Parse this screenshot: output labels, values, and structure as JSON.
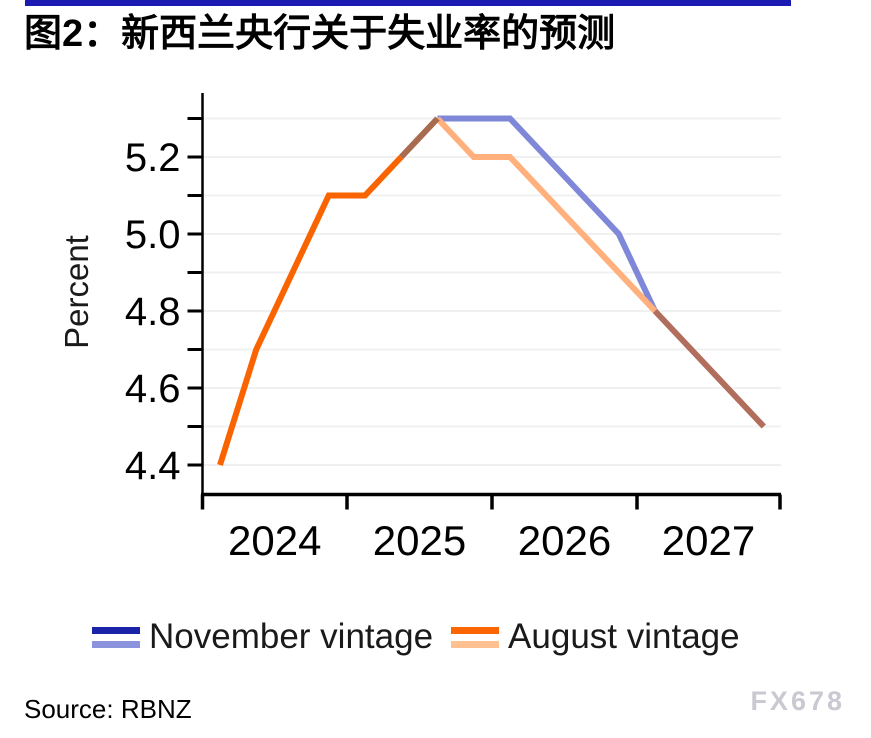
{
  "header": {
    "title": "图2：新西兰央行关于失业率的预测",
    "rule_color": "#1B1BB4"
  },
  "chart_data": {
    "type": "line",
    "title": "图2：新西兰央行关于失业率的预测",
    "xlabel": "",
    "ylabel": "Percent",
    "x_quarters": [
      "2024Q1",
      "2024Q2",
      "2024Q3",
      "2024Q4",
      "2025Q1",
      "2025Q2",
      "2025Q3",
      "2025Q4",
      "2026Q1",
      "2026Q2",
      "2026Q3",
      "2026Q4",
      "2027Q1",
      "2027Q2",
      "2027Q3",
      "2027Q4"
    ],
    "x_year_tick_labels": [
      "2024",
      "2025",
      "2026",
      "2027"
    ],
    "y_axis": {
      "min": 4.4,
      "max": 5.3,
      "grid_step": 0.1,
      "labeled_ticks": [
        "4.4",
        "4.6",
        "4.8",
        "5.0",
        "5.2"
      ],
      "labeled_tick_values": [
        4.4,
        4.6,
        4.8,
        5.0,
        5.2
      ],
      "grid": true
    },
    "legend_position": "bottom",
    "series": [
      {
        "name": "November vintage",
        "values": [
          4.4,
          4.7,
          4.9,
          5.1,
          5.1,
          5.2,
          5.3,
          5.3,
          5.3,
          5.2,
          5.1,
          5.0,
          4.8,
          4.7,
          4.6,
          4.5
        ],
        "history_end_index": 6,
        "color_history": "#1B23A8",
        "color_forecast": "#7F88D8"
      },
      {
        "name": "August vintage",
        "values": [
          4.4,
          4.7,
          4.9,
          5.1,
          5.1,
          5.2,
          5.3,
          5.2,
          5.2,
          5.1,
          5.0,
          4.9,
          4.8,
          4.7,
          4.6,
          4.5
        ],
        "history_end_index": 5,
        "color_history": "#FA6400",
        "color_forecast": "#FFB07C"
      }
    ],
    "render_segments": [
      {
        "series": 0,
        "from": 6,
        "to": 12,
        "color": "#7F88D8",
        "note": "November forecast (light blue)"
      },
      {
        "series": 1,
        "from": 6,
        "to": 12,
        "color": "#FFB07C",
        "note": "August forecast (light orange)"
      },
      {
        "series": 0,
        "from": 5,
        "to": 6,
        "color": "#A96B50",
        "note": "overlap of November history and August forecast"
      },
      {
        "series": 0,
        "from": 12,
        "to": 15,
        "color": "#B26E5C",
        "note": "overlap of both forecasts (merged tail)"
      },
      {
        "series": 1,
        "from": 0,
        "to": 5,
        "color": "#FA6400",
        "note": "shared actual history (bright orange)"
      }
    ]
  },
  "legend": {
    "items": [
      {
        "label": "November vintage",
        "colors": [
          "#1B23A8",
          "#8A93DB"
        ]
      },
      {
        "label": "August vintage",
        "colors": [
          "#FB6602",
          "#FFC092"
        ]
      }
    ]
  },
  "footer": {
    "source": "Source: RBNZ",
    "watermark": "FX678"
  }
}
